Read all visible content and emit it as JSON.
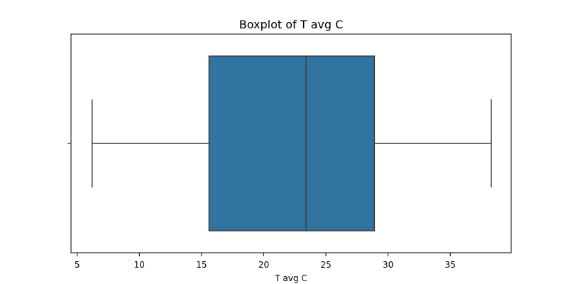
{
  "chart_data": {
    "type": "boxplot",
    "title": "Boxplot of T avg C",
    "xlabel": "T avg C",
    "ylabel": "",
    "xlim": [
      4.5,
      39.9
    ],
    "xticks": [
      5,
      10,
      15,
      20,
      25,
      30,
      35
    ],
    "xtick_labels": [
      "5",
      "10",
      "15",
      "20",
      "25",
      "30",
      "35"
    ],
    "grid": false,
    "box": {
      "whisker_low": 6.2,
      "q1": 15.6,
      "median": 23.4,
      "q3": 28.9,
      "whisker_high": 38.3
    },
    "colors": {
      "box_fill": "#3274a1",
      "line": "#3d3d3d",
      "axes": "#000000"
    }
  }
}
